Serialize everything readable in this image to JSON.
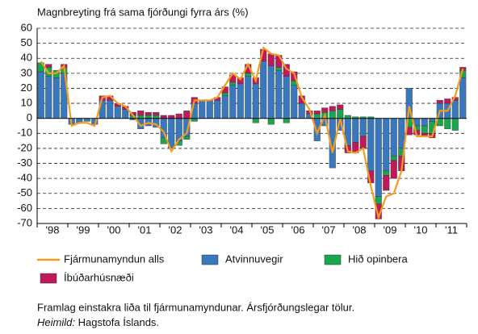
{
  "chart_data": {
    "type": "bar",
    "title": "Magnbreyting frá sama fjórðungi fyrra árs (%)",
    "categories": [
      "'98",
      null,
      null,
      null,
      "'99",
      null,
      null,
      null,
      "'00",
      null,
      null,
      null,
      "'01",
      null,
      null,
      null,
      "'02",
      null,
      null,
      null,
      "'03",
      null,
      null,
      null,
      "'04",
      null,
      null,
      null,
      "'05",
      null,
      null,
      null,
      "'06",
      null,
      null,
      null,
      "'07",
      null,
      null,
      null,
      "'08",
      null,
      null,
      null,
      "'09",
      null,
      null,
      null,
      "'10",
      null,
      null,
      null,
      "'11",
      null,
      null,
      null
    ],
    "series": [
      {
        "name": "Fjármunamyndun alls",
        "type": "line",
        "color": "#f39c1f",
        "values": [
          38,
          30,
          30,
          35,
          -5,
          -3,
          -3,
          -5,
          14,
          15,
          10,
          8,
          2,
          -5,
          -3,
          -4,
          -9,
          -22,
          -14,
          -10,
          12,
          12,
          12,
          14,
          22,
          30,
          26,
          36,
          25,
          47,
          43,
          42,
          33,
          30,
          14,
          6,
          -10,
          2,
          -23,
          0,
          -22,
          -23,
          -20,
          -45,
          -66,
          -52,
          -50,
          -35,
          8,
          -12,
          -12,
          -12,
          5,
          5,
          15,
          33
        ]
      },
      {
        "name": "Atvinnuvegir",
        "color": "#3a78be",
        "values": [
          31,
          28,
          27,
          30,
          -4,
          -3,
          -2,
          -4,
          12,
          12,
          8,
          6,
          -1,
          -7,
          -5,
          -6,
          -13,
          -20,
          -15,
          -12,
          10,
          12,
          12,
          12,
          15,
          22,
          23,
          28,
          23,
          38,
          35,
          32,
          28,
          22,
          10,
          3,
          -15,
          -5,
          -33,
          -8,
          -18,
          -16,
          -12,
          -35,
          -52,
          -35,
          -25,
          -20,
          20,
          -5,
          -5,
          -2,
          10,
          10,
          12,
          27
        ]
      },
      {
        "name": "Hið opinbera",
        "color": "#18a64e",
        "values": [
          6,
          6,
          5,
          4,
          0,
          0,
          0,
          0,
          0,
          0,
          0,
          0,
          2,
          2,
          2,
          2,
          -4,
          0,
          -3,
          -2,
          -2,
          0,
          0,
          0,
          2,
          2,
          0,
          2,
          -3,
          0,
          -4,
          2,
          -3,
          3,
          0,
          0,
          3,
          4,
          5,
          6,
          2,
          1,
          1,
          1,
          -5,
          -3,
          -3,
          -5,
          -6,
          -3,
          -5,
          -8,
          -5,
          -7,
          -8,
          5
        ]
      },
      {
        "name": "Íbúðarhúsnæði",
        "color": "#c0185a",
        "values": [
          0,
          2,
          0,
          2,
          0,
          0,
          0,
          0,
          3,
          3,
          2,
          2,
          2,
          3,
          2,
          2,
          2,
          2,
          3,
          5,
          4,
          0,
          0,
          2,
          4,
          5,
          4,
          6,
          4,
          8,
          8,
          8,
          8,
          6,
          5,
          2,
          2,
          3,
          3,
          3,
          -5,
          -7,
          -8,
          -8,
          -10,
          -10,
          -12,
          -10,
          -5,
          -3,
          -2,
          -3,
          2,
          3,
          2,
          2
        ]
      }
    ],
    "ylim": [
      -70,
      60
    ],
    "yticks": [
      -70,
      -60,
      -50,
      -40,
      -30,
      -20,
      -10,
      0,
      10,
      20,
      30,
      40,
      50,
      60
    ],
    "grid": true,
    "caption": "Framlag einstakra liða til fjármunamyndunar. Ársfjórðungslegar tölur.",
    "source": {
      "label": "Heimild:",
      "text": "Hagstofa Íslands."
    }
  }
}
